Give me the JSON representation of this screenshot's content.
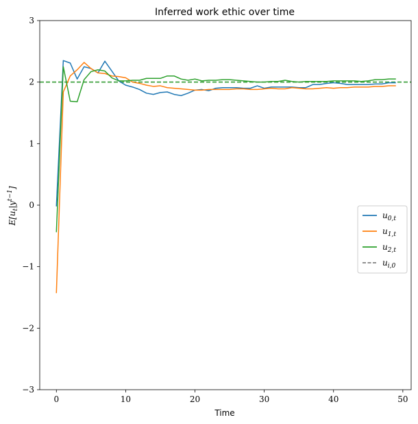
{
  "chart_data": {
    "type": "line",
    "title": "Inferred work ethic over time",
    "xlabel": "Time",
    "ylabel": "E[u_t|y^{t-1}]",
    "xlim": [
      -2.4,
      51.2
    ],
    "ylim": [
      -3,
      3
    ],
    "xticks": [
      0,
      10,
      20,
      30,
      40,
      50
    ],
    "yticks": [
      -3,
      -2,
      -1,
      0,
      1,
      2,
      3
    ],
    "grid": false,
    "legend_position": "center-right",
    "x": [
      0,
      1,
      2,
      3,
      4,
      5,
      6,
      7,
      8,
      9,
      10,
      11,
      12,
      13,
      14,
      15,
      16,
      17,
      18,
      19,
      20,
      21,
      22,
      23,
      24,
      25,
      26,
      27,
      28,
      29,
      30,
      31,
      32,
      33,
      34,
      35,
      36,
      37,
      38,
      39,
      40,
      41,
      42,
      43,
      44,
      45,
      46,
      47,
      48,
      49
    ],
    "series": [
      {
        "name": "u_{0,t}",
        "color": "#1f77b4",
        "style": "solid",
        "values": [
          -0.02,
          2.35,
          2.31,
          2.05,
          2.25,
          2.22,
          2.15,
          2.34,
          2.18,
          2.02,
          1.95,
          1.92,
          1.88,
          1.82,
          1.8,
          1.83,
          1.84,
          1.8,
          1.78,
          1.82,
          1.87,
          1.88,
          1.86,
          1.9,
          1.91,
          1.91,
          1.91,
          1.9,
          1.9,
          1.94,
          1.9,
          1.92,
          1.92,
          1.92,
          1.92,
          1.91,
          1.91,
          1.96,
          1.96,
          1.98,
          1.99,
          1.98,
          1.96,
          1.96,
          1.96,
          1.96,
          1.97,
          1.97,
          1.99,
          1.99
        ]
      },
      {
        "name": "u_{1,t}",
        "color": "#ff7f0e",
        "style": "solid",
        "values": [
          -1.43,
          1.84,
          2.1,
          2.2,
          2.32,
          2.22,
          2.15,
          2.14,
          2.1,
          2.09,
          2.07,
          2.0,
          1.98,
          1.95,
          1.93,
          1.94,
          1.91,
          1.9,
          1.89,
          1.88,
          1.87,
          1.87,
          1.88,
          1.88,
          1.88,
          1.88,
          1.89,
          1.89,
          1.88,
          1.88,
          1.89,
          1.9,
          1.89,
          1.89,
          1.91,
          1.9,
          1.89,
          1.89,
          1.9,
          1.91,
          1.9,
          1.91,
          1.91,
          1.92,
          1.92,
          1.92,
          1.93,
          1.93,
          1.94,
          1.94
        ]
      },
      {
        "name": "u_{2,t}",
        "color": "#2ca02c",
        "style": "solid",
        "values": [
          -0.44,
          2.25,
          1.69,
          1.68,
          2.04,
          2.17,
          2.2,
          2.18,
          2.07,
          2.02,
          2.02,
          2.03,
          2.03,
          2.06,
          2.06,
          2.06,
          2.1,
          2.1,
          2.05,
          2.03,
          2.05,
          2.02,
          2.03,
          2.03,
          2.04,
          2.04,
          2.03,
          2.02,
          2.01,
          2.0,
          2.0,
          2.01,
          2.01,
          2.03,
          2.01,
          2.0,
          2.01,
          2.01,
          2.01,
          2.01,
          2.02,
          2.02,
          2.02,
          2.02,
          2.01,
          2.02,
          2.04,
          2.04,
          2.05,
          2.05
        ]
      }
    ],
    "reference_lines": [
      {
        "name": "u_{i,0}",
        "color": "#808080",
        "style": "dashed",
        "y": 2.0,
        "legend": true
      },
      {
        "name": "",
        "color": "#2ca02c",
        "style": "dashed",
        "y": 2.0,
        "legend": false
      }
    ]
  }
}
